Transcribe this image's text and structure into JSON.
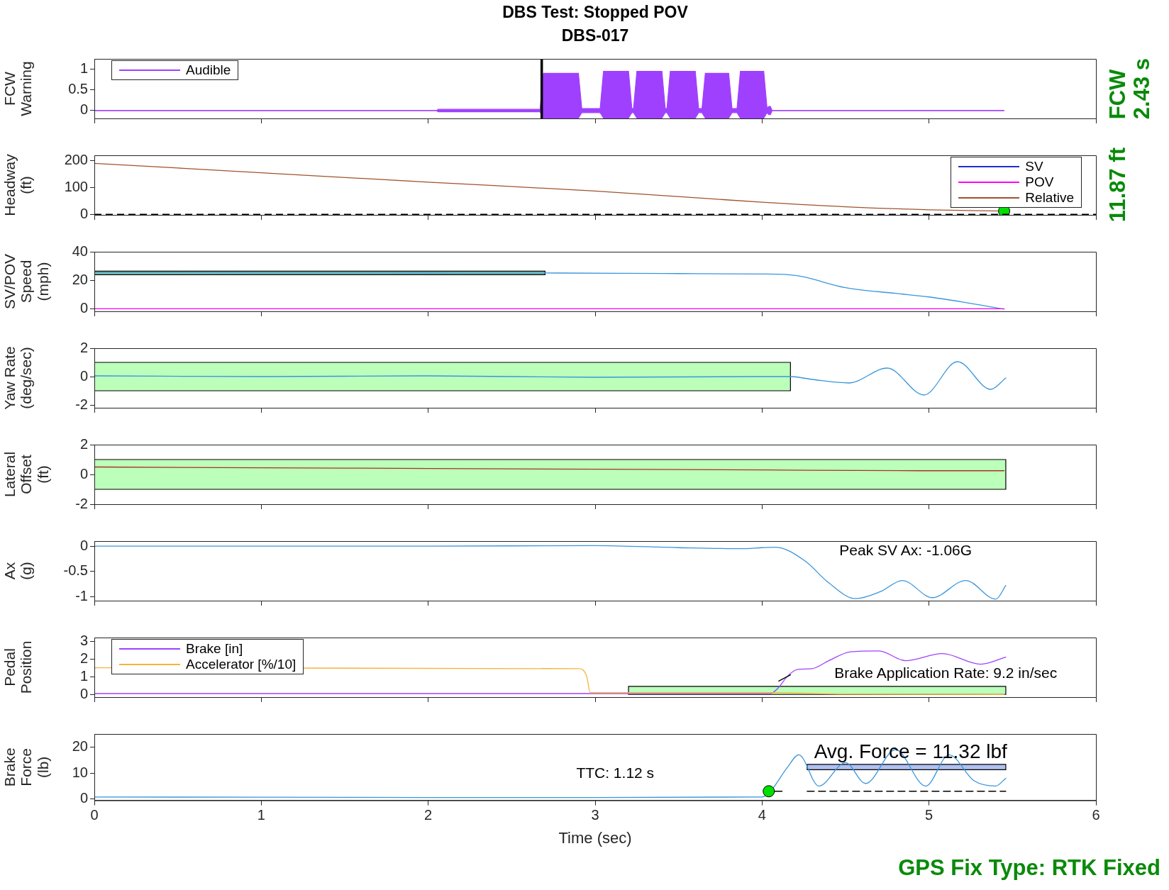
{
  "chart_data": [
    {
      "type": "line",
      "title": "DBS Test: Stopped POV",
      "subtitle": "DBS-017",
      "ylabel": "FCW\nWarning",
      "xlim": [
        0,
        6
      ],
      "xticks": [
        0,
        1,
        2,
        3,
        4,
        5,
        6
      ],
      "ylim": [
        -0.19,
        1.25
      ],
      "yticks": [
        0,
        0.5,
        1
      ],
      "tick_labels": "y",
      "legend": "top left",
      "series": [
        {
          "name": "Audible",
          "color": "#a040ff",
          "x": [
            0,
            2.05,
            2.06,
            2.67,
            2.69,
            2.9,
            2.92,
            3.03,
            3.05,
            3.2,
            3.22,
            3.23,
            3.25,
            3.4,
            3.42,
            3.43,
            3.45,
            3.6,
            3.62,
            3.64,
            3.66,
            3.8,
            3.82,
            3.85,
            3.87,
            4.01,
            4.03,
            4.04,
            4.05,
            4.06,
            5.45
          ],
          "values": [
            0,
            0,
            0,
            0,
            0,
            0,
            0,
            0,
            0,
            0,
            0,
            0,
            0,
            0,
            0,
            0,
            0,
            0,
            0,
            0,
            0,
            0,
            0,
            0,
            0,
            0,
            0,
            0,
            0,
            0,
            0
          ],
          "upper": [
            0,
            0,
            0.03,
            0.03,
            0.9,
            0.9,
            0.05,
            0.05,
            0.95,
            0.95,
            0.05,
            0.05,
            0.95,
            0.95,
            0.05,
            0.05,
            0.95,
            0.95,
            0.05,
            0.05,
            0.9,
            0.9,
            0.05,
            0.05,
            0.95,
            0.95,
            0.05,
            0.1,
            0.1,
            0,
            0
          ],
          "lower": [
            0,
            0,
            -0.03,
            -0.03,
            -0.18,
            -0.18,
            -0.05,
            -0.05,
            -0.18,
            -0.18,
            -0.05,
            -0.05,
            -0.18,
            -0.18,
            -0.05,
            -0.05,
            -0.18,
            -0.18,
            -0.05,
            -0.05,
            -0.18,
            -0.18,
            -0.05,
            -0.05,
            -0.18,
            -0.18,
            -0.05,
            -0.1,
            -0.1,
            0,
            0
          ]
        }
      ],
      "ref_lines": [
        {
          "axis": "x",
          "value": 2.68,
          "color": "#000000"
        }
      ],
      "annotations": [
        "FCW\n2.43 s"
      ]
    },
    {
      "type": "line",
      "ylabel": "Headway\n(ft)",
      "xlim": [
        0,
        6
      ],
      "xticks": [
        0,
        1,
        2,
        3,
        4,
        5,
        6
      ],
      "ylim": [
        -2,
        220
      ],
      "yticks": [
        0,
        100,
        200
      ],
      "tick_labels": "y",
      "legend": "top right",
      "series": [
        {
          "name": "SV",
          "color": "#1f2fd0"
        },
        {
          "name": "POV",
          "color": "#ff00ff"
        },
        {
          "name": "Relative",
          "color": "#a0522d",
          "x": [
            0,
            1,
            2,
            3,
            4,
            4.5,
            5,
            5.45
          ],
          "values": [
            190,
            155,
            120,
            87,
            45,
            28,
            17,
            12
          ]
        },
        {
          "type": "scatter",
          "color": "#00e000",
          "marker": "circle",
          "x": [
            5.45
          ],
          "values": [
            11.87
          ]
        }
      ],
      "ref_lines": [
        {
          "axis": "y",
          "value": 0,
          "color": "#000000",
          "line_style": "dashed"
        }
      ],
      "annotations": [
        "11.87 ft"
      ]
    },
    {
      "type": "line",
      "ylabel": "SV/POV\nSpeed\n(mph)",
      "xlim": [
        0,
        6
      ],
      "xticks": [
        0,
        1,
        2,
        3,
        4,
        5,
        6
      ],
      "ylim": [
        -1.5,
        40
      ],
      "yticks": [
        0,
        20,
        40
      ],
      "tick_labels": "y",
      "series": [
        {
          "color": "#88ccaa",
          "x": [
            0,
            2.7
          ],
          "values": [
            null,
            null
          ],
          "lower": [
            24,
            24
          ],
          "upper": [
            26.5,
            26.5
          ]
        },
        {
          "color": "#3a96dc",
          "x": [
            0,
            1,
            2,
            2.7,
            3.5,
            4.0,
            4.2,
            4.5,
            4.8,
            5.0,
            5.2,
            5.45
          ],
          "values": [
            25.5,
            25.4,
            25.3,
            25.2,
            24.8,
            24.5,
            23.5,
            15,
            11,
            8.5,
            5,
            0
          ]
        },
        {
          "color": "#ff00ff",
          "x": [
            0,
            5.45
          ],
          "values": [
            0.3,
            0.3
          ]
        }
      ]
    },
    {
      "type": "line",
      "ylabel": "Yaw Rate\n(deg/sec)",
      "xlim": [
        0,
        6
      ],
      "xticks": [
        0,
        1,
        2,
        3,
        4,
        5,
        6
      ],
      "ylim": [
        -2.2,
        2
      ],
      "yticks": [
        -2,
        0,
        2
      ],
      "tick_labels": "y",
      "series": [
        {
          "color": "#bbffbb",
          "x": [
            0,
            4.17
          ],
          "values": [
            null,
            null
          ],
          "lower": [
            -1,
            -1
          ],
          "upper": [
            1,
            1
          ]
        },
        {
          "color": "#3a96dc",
          "x": [
            0,
            1,
            2,
            3,
            4,
            4.17,
            4.3,
            4.52,
            4.75,
            4.97,
            5.17,
            5.37,
            5.46
          ],
          "values": [
            0.05,
            0,
            0.05,
            -0.05,
            0,
            0,
            -0.2,
            -0.45,
            0.6,
            -1.3,
            1.05,
            -0.9,
            -0.1
          ]
        }
      ]
    },
    {
      "type": "line",
      "ylabel": "Lateral\nOffset\n(ft)",
      "xlim": [
        0,
        6
      ],
      "xticks": [
        0,
        1,
        2,
        3,
        4,
        5,
        6
      ],
      "ylim": [
        -2,
        2
      ],
      "yticks": [
        -2,
        0,
        2
      ],
      "tick_labels": "y",
      "series": [
        {
          "color": "#bbffbb",
          "x": [
            0,
            5.46
          ],
          "values": [
            null,
            null
          ],
          "lower": [
            -1,
            -1
          ],
          "upper": [
            1,
            1
          ]
        },
        {
          "color": "#b03020",
          "x": [
            0,
            1,
            2,
            3,
            4,
            5,
            5.45
          ],
          "values": [
            0.5,
            0.45,
            0.4,
            0.35,
            0.3,
            0.25,
            0.25
          ]
        }
      ]
    },
    {
      "type": "line",
      "ylabel": "Ax\n(g)",
      "xlim": [
        0,
        6
      ],
      "xticks": [
        0,
        1,
        2,
        3,
        4,
        5,
        6
      ],
      "ylim": [
        -1.08,
        0.1
      ],
      "yticks": [
        -1,
        -0.5,
        0
      ],
      "tick_labels": "y",
      "series": [
        {
          "color": "#3a96dc",
          "x": [
            0,
            1,
            2,
            3,
            3.5,
            3.9,
            4.0,
            4.08,
            4.26,
            4.39,
            4.56,
            4.71,
            4.84,
            5.02,
            5.22,
            5.4,
            5.46
          ],
          "values": [
            0,
            0,
            0,
            0.01,
            -0.03,
            -0.05,
            -0.03,
            -0.02,
            -0.3,
            -0.7,
            -1.04,
            -0.9,
            -0.68,
            -1.02,
            -0.68,
            -1.05,
            -0.78
          ]
        }
      ],
      "annotations": [
        "Peak SV Ax: -1.06G"
      ]
    },
    {
      "type": "line",
      "ylabel": "Pedal\nPosition",
      "xlim": [
        0,
        6
      ],
      "xticks": [
        0,
        1,
        2,
        3,
        4,
        5,
        6
      ],
      "ylim": [
        -0.15,
        3.2
      ],
      "yticks": [
        0,
        1,
        2,
        3
      ],
      "tick_labels": "y",
      "legend": "top left",
      "series": [
        {
          "color": "#bbffbb",
          "x": [
            3.2,
            5.46
          ],
          "values": [
            null,
            null
          ],
          "lower": [
            0,
            0
          ],
          "upper": [
            0.45,
            0.45
          ]
        },
        {
          "name": "Brake [in]",
          "color": "#a040ff",
          "x": [
            0,
            4.05,
            4.1,
            4.15,
            4.21,
            4.3,
            4.4,
            4.53,
            4.7,
            4.86,
            5.08,
            5.31,
            5.46
          ],
          "values": [
            0.05,
            0.05,
            0.4,
            1.0,
            1.4,
            1.45,
            1.9,
            2.4,
            2.45,
            1.9,
            2.3,
            1.7,
            2.1
          ]
        },
        {
          "name": "Accelerator [%/10]",
          "color": "#f5b43c",
          "x": [
            0,
            2.9,
            2.95,
            2.97,
            4.05,
            4.5,
            5.45
          ],
          "values": [
            1.5,
            1.45,
            1.0,
            0.1,
            0.1,
            0.02,
            0
          ]
        },
        {
          "color": "#000000",
          "x": [
            4.1,
            4.17
          ],
          "values": [
            0.75,
            1.1
          ]
        }
      ],
      "annotations": [
        "Brake Application Rate: 9.2 in/sec"
      ]
    },
    {
      "type": "line",
      "ylabel": "Brake\nForce\n(lb)",
      "xlabel": "Time (sec)",
      "xlim": [
        0,
        6
      ],
      "xticks": [
        0,
        1,
        2,
        3,
        4,
        5,
        6
      ],
      "ylim": [
        -0.5,
        25
      ],
      "yticks": [
        0,
        10,
        20
      ],
      "series": [
        {
          "color": "#b0c0f0",
          "x": [
            4.27,
            5.46
          ],
          "values": [
            null,
            null
          ],
          "lower": [
            11.3,
            11.3
          ],
          "upper": [
            13.3,
            13.3
          ]
        },
        {
          "color": "#3a96dc",
          "x": [
            0,
            1,
            2,
            3,
            4.0,
            4.05,
            4.15,
            4.22,
            4.34,
            4.5,
            4.62,
            4.8,
            4.98,
            5.12,
            5.27,
            5.4,
            5.46
          ],
          "values": [
            0.8,
            0.7,
            0.6,
            0.6,
            0.8,
            3,
            12,
            17,
            5,
            14,
            6,
            19,
            5,
            17,
            7,
            5,
            8
          ]
        },
        {
          "color": "#000000",
          "line_style": "dashed",
          "x": [
            4.27,
            5.46
          ],
          "values": [
            3,
            3
          ]
        },
        {
          "color": "#000000",
          "x": [
            4.05,
            4.12
          ],
          "values": [
            3,
            3
          ]
        },
        {
          "type": "scatter",
          "color": "#00e000",
          "marker": "circle",
          "x": [
            4.04
          ],
          "values": [
            3
          ]
        }
      ],
      "annotations": [
        "TTC: 1.12 s",
        "Avg. Force = 11.32 lbf",
        "GPS Fix Type: RTK Fixed"
      ]
    }
  ]
}
